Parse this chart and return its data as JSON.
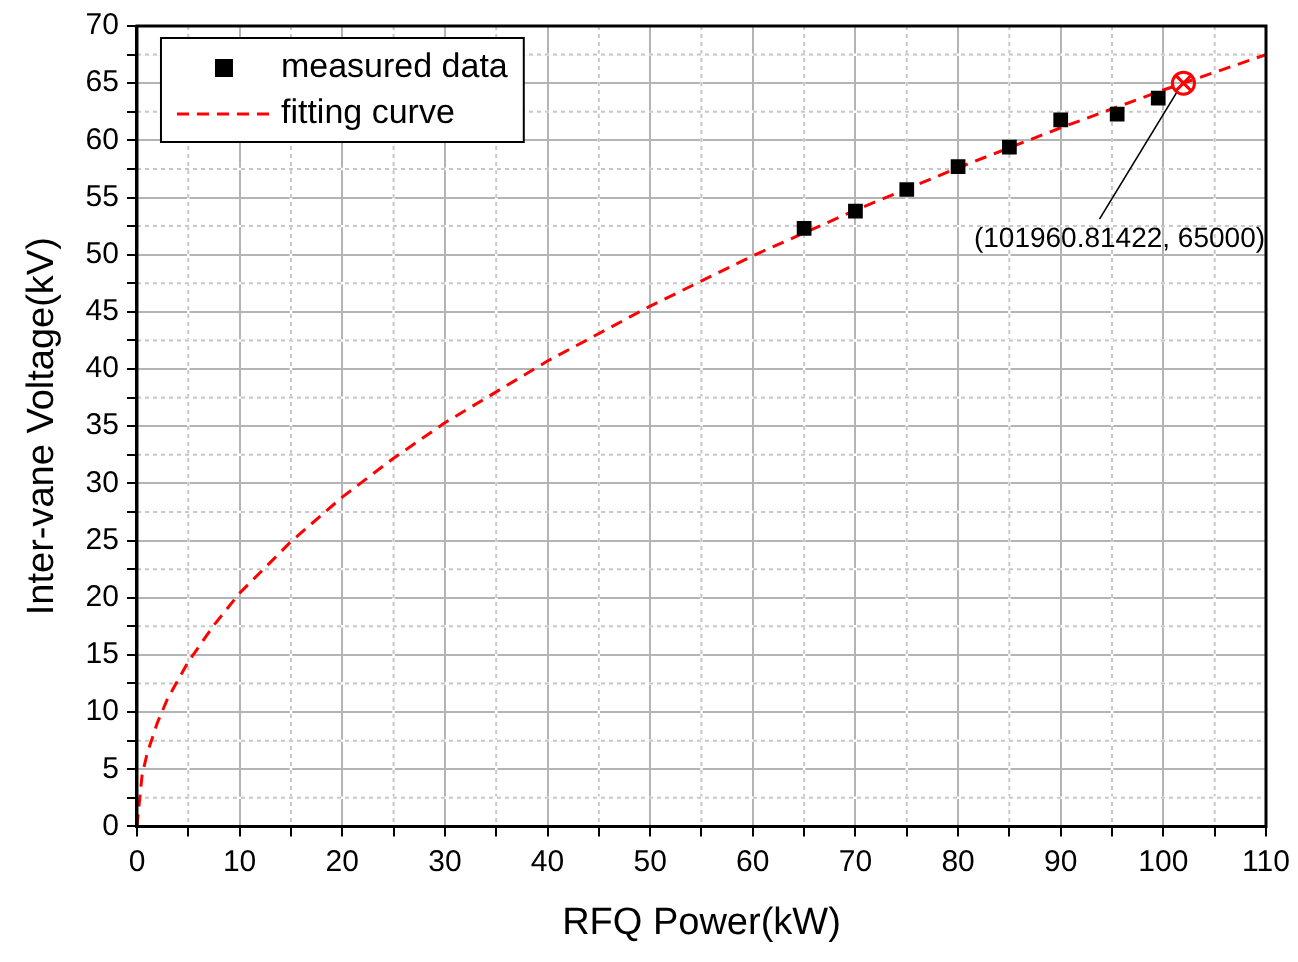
{
  "chart_data": {
    "type": "scatter",
    "xlabel": "RFQ Power(kW)",
    "ylabel": "Inter-vane Voltage(kV)",
    "xlim": [
      0,
      110
    ],
    "ylim": [
      0,
      70
    ],
    "xticks": [
      0,
      {
        "value": 5,
        "label": null
      },
      10,
      {
        "value": 15,
        "label": null
      },
      20,
      {
        "value": 25,
        "label": null
      },
      30,
      {
        "value": 35,
        "label": null
      },
      40,
      {
        "value": 45,
        "label": null
      },
      50,
      {
        "value": 55,
        "label": null
      },
      60,
      {
        "value": 65,
        "label": null
      },
      70,
      {
        "value": 75,
        "label": null
      },
      80,
      {
        "value": 85,
        "label": null
      },
      90,
      {
        "value": 95,
        "label": null
      },
      100,
      {
        "value": 105,
        "label": null
      },
      110
    ],
    "yticks": [
      0,
      {
        "value": 2.5,
        "label": null
      },
      5,
      {
        "value": 7.5,
        "label": null
      },
      10,
      {
        "value": 12.5,
        "label": null
      },
      15,
      {
        "value": 17.5,
        "label": null
      },
      20,
      {
        "value": 22.5,
        "label": null
      },
      25,
      {
        "value": 27.5,
        "label": null
      },
      30,
      {
        "value": 32.5,
        "label": null
      },
      35,
      {
        "value": 37.5,
        "label": null
      },
      40,
      {
        "value": 42.5,
        "label": null
      },
      45,
      {
        "value": 47.5,
        "label": null
      },
      50,
      {
        "value": 52.5,
        "label": null
      },
      55,
      {
        "value": 57.5,
        "label": null
      },
      60,
      {
        "value": 62.5,
        "label": null
      },
      65,
      {
        "value": 67.5,
        "label": null
      },
      70
    ],
    "grid": true,
    "legend": "top left",
    "series": [
      {
        "name": "measured data",
        "type": "scatter",
        "marker": "square",
        "color": "#000000",
        "x": [
          65,
          70,
          75,
          80,
          85,
          90,
          95.5,
          99.5
        ],
        "values": [
          52.3,
          53.8,
          55.7,
          57.7,
          59.4,
          61.8,
          62.3,
          63.7
        ]
      },
      {
        "name": "fitting curve",
        "type": "line",
        "marker": "none",
        "line_style": "dashed",
        "color": "#ff0000",
        "x": [
          0,
          0.5,
          1,
          2,
          3,
          5,
          7.5,
          10,
          15,
          20,
          25,
          30,
          40,
          50,
          60,
          70,
          80,
          90,
          100,
          110
        ],
        "values": [
          0,
          4.5,
          6.4,
          9.1,
          11.2,
          14.4,
          17.6,
          20.4,
          24.9,
          28.8,
          32.2,
          35.3,
          40.7,
          45.5,
          49.9,
          53.9,
          57.6,
          61.1,
          64.4,
          67.5
        ]
      }
    ],
    "annotations": [
      {
        "text": "(101960.81422, 65000)",
        "x": 101.96,
        "y": 65
      }
    ]
  }
}
